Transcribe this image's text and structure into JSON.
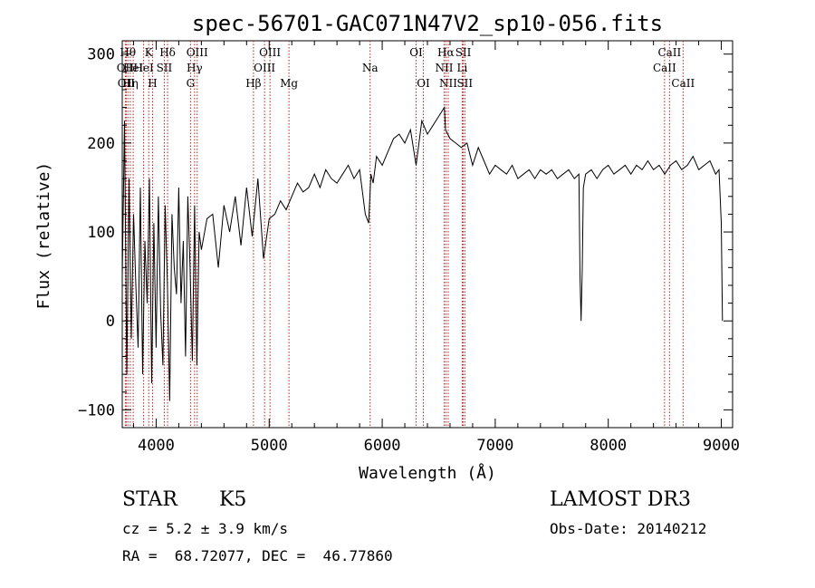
{
  "chart_data": {
    "type": "line",
    "title": "spec-56701-GAC071N47V2_sp10-056.fits",
    "xlabel": "Wavelength (Å)",
    "ylabel": "Flux (relative)",
    "xlim": [
      3700,
      9100
    ],
    "ylim": [
      -120,
      315
    ],
    "xticks": [
      4000,
      5000,
      6000,
      7000,
      8000,
      9000
    ],
    "yticks": [
      -100,
      0,
      100,
      200,
      300
    ],
    "xtick_labels": [
      "4000",
      "5000",
      "6000",
      "7000",
      "8000",
      "9000"
    ],
    "ytick_labels": [
      "−100",
      "0",
      "100",
      "200",
      "300"
    ],
    "grid": false,
    "series": [
      {
        "name": "flux",
        "x": [
          3700,
          3720,
          3740,
          3760,
          3780,
          3800,
          3820,
          3840,
          3860,
          3880,
          3900,
          3920,
          3940,
          3960,
          3980,
          4000,
          4020,
          4040,
          4060,
          4080,
          4100,
          4120,
          4140,
          4160,
          4180,
          4200,
          4220,
          4240,
          4260,
          4280,
          4300,
          4320,
          4340,
          4360,
          4380,
          4400,
          4450,
          4500,
          4550,
          4600,
          4650,
          4700,
          4750,
          4800,
          4850,
          4900,
          4950,
          5000,
          5050,
          5100,
          5150,
          5200,
          5250,
          5300,
          5350,
          5400,
          5450,
          5500,
          5550,
          5600,
          5650,
          5700,
          5750,
          5800,
          5850,
          5880,
          5900,
          5920,
          5950,
          6000,
          6050,
          6100,
          6150,
          6200,
          6250,
          6300,
          6350,
          6400,
          6450,
          6500,
          6550,
          6560,
          6600,
          6650,
          6700,
          6750,
          6800,
          6850,
          6900,
          6950,
          7000,
          7050,
          7100,
          7150,
          7200,
          7250,
          7300,
          7350,
          7400,
          7450,
          7500,
          7550,
          7600,
          7650,
          7700,
          7740,
          7750,
          7760,
          7770,
          7780,
          7800,
          7850,
          7900,
          7950,
          8000,
          8050,
          8100,
          8150,
          8200,
          8250,
          8300,
          8350,
          8400,
          8450,
          8500,
          8550,
          8600,
          8650,
          8700,
          8750,
          8800,
          8850,
          8900,
          8950,
          8980,
          9000,
          9010
        ],
        "y": [
          50,
          225,
          -60,
          160,
          -20,
          120,
          40,
          -30,
          150,
          -60,
          90,
          20,
          160,
          -70,
          110,
          -30,
          140,
          10,
          -50,
          130,
          40,
          -90,
          120,
          60,
          30,
          150,
          20,
          90,
          -40,
          140,
          60,
          -45,
          130,
          -50,
          100,
          80,
          115,
          120,
          60,
          130,
          100,
          140,
          85,
          150,
          95,
          160,
          70,
          115,
          120,
          135,
          125,
          140,
          155,
          145,
          150,
          165,
          150,
          170,
          160,
          155,
          165,
          175,
          160,
          170,
          120,
          110,
          165,
          155,
          185,
          175,
          190,
          205,
          210,
          200,
          215,
          175,
          225,
          210,
          220,
          230,
          240,
          215,
          205,
          200,
          195,
          200,
          175,
          195,
          180,
          165,
          175,
          170,
          165,
          175,
          160,
          165,
          170,
          160,
          170,
          165,
          170,
          160,
          165,
          170,
          160,
          165,
          50,
          0,
          60,
          150,
          165,
          170,
          160,
          170,
          175,
          165,
          170,
          175,
          165,
          175,
          170,
          180,
          170,
          175,
          165,
          175,
          180,
          170,
          175,
          185,
          170,
          175,
          180,
          165,
          170,
          110,
          0
        ]
      }
    ],
    "lines": [
      {
        "wave": 3750,
        "row": 1,
        "label": "Hθ"
      },
      {
        "wave": 3727,
        "row": 2,
        "label": "OII"
      },
      {
        "wave": 3735,
        "row": 3,
        "label": "OII"
      },
      {
        "wave": 3797,
        "row": 2,
        "label": "HeI"
      },
      {
        "wave": 3771,
        "row": 3,
        "label": "Hη"
      },
      {
        "wave": 3934,
        "row": 1,
        "label": "K"
      },
      {
        "wave": 3889,
        "row": 2,
        "label": "HeI"
      },
      {
        "wave": 3968,
        "row": 3,
        "label": "H"
      },
      {
        "wave": 4101,
        "row": 1,
        "label": "Hδ"
      },
      {
        "wave": 4072,
        "row": 2,
        "label": "SII"
      },
      {
        "wave": 4363,
        "row": 1,
        "label": "OIII"
      },
      {
        "wave": 4340,
        "row": 2,
        "label": "Hγ"
      },
      {
        "wave": 4304,
        "row": 3,
        "label": "G"
      },
      {
        "wave": 4861,
        "row": 3,
        "label": "Hβ"
      },
      {
        "wave": 5007,
        "row": 1,
        "label": "OIII"
      },
      {
        "wave": 4959,
        "row": 2,
        "label": "OIII"
      },
      {
        "wave": 5175,
        "row": 3,
        "label": "Mg"
      },
      {
        "wave": 5893,
        "row": 2,
        "label": "Na"
      },
      {
        "wave": 6300,
        "row": 1,
        "label": "OI"
      },
      {
        "wave": 6364,
        "row": 3,
        "label": "OI"
      },
      {
        "wave": 6563,
        "row": 1,
        "label": "Hα"
      },
      {
        "wave": 6548,
        "row": 2,
        "label": "NII"
      },
      {
        "wave": 6584,
        "row": 3,
        "label": "NII"
      },
      {
        "wave": 6717,
        "row": 1,
        "label": "SII"
      },
      {
        "wave": 6708,
        "row": 2,
        "label": "Li"
      },
      {
        "wave": 6731,
        "row": 3,
        "label": "SII"
      },
      {
        "wave": 8542,
        "row": 1,
        "label": "CaII"
      },
      {
        "wave": 8498,
        "row": 2,
        "label": "CaII"
      },
      {
        "wave": 8662,
        "row": 3,
        "label": "CaII"
      }
    ]
  },
  "info": {
    "object_type": "STAR",
    "subclass": "K5",
    "survey": "LAMOST DR3",
    "cz": "cz = 5.2 ± 3.9 km/s",
    "obs_date": "Obs-Date: 20140212",
    "coords": "RA =  68.72077, DEC =  46.77860"
  },
  "colors": {
    "line_marker": "#b22222",
    "spectrum": "#000000"
  }
}
